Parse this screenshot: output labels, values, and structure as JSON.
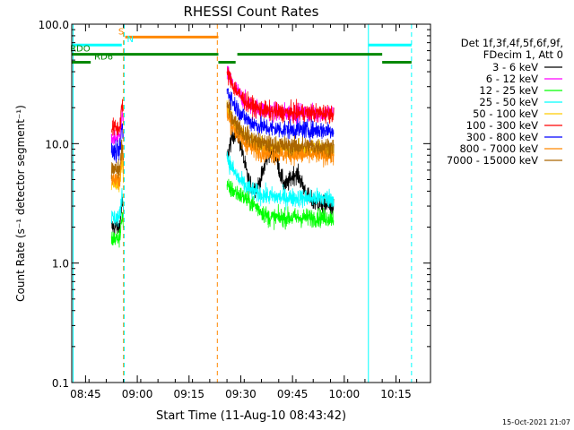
{
  "chart_data": {
    "type": "line",
    "title": "RHESSI Count Rates",
    "xlabel": "Start Time (11-Aug-10 08:43:42)",
    "ylabel": "Count Rate (s⁻¹ detector segment⁻¹)",
    "yscale": "log",
    "ylim": [
      0.1,
      100.0
    ],
    "xlim_minutes": [
      -4,
      100
    ],
    "x_ticks": [
      {
        "m": 0,
        "label": "08:45"
      },
      {
        "m": 15,
        "label": "09:00"
      },
      {
        "m": 30,
        "label": "09:15"
      },
      {
        "m": 45,
        "label": "09:30"
      },
      {
        "m": 60,
        "label": "09:45"
      },
      {
        "m": 75,
        "label": "10:00"
      },
      {
        "m": 90,
        "label": "10:15"
      }
    ],
    "y_ticks": [
      {
        "v": 0.1,
        "label": "0.1"
      },
      {
        "v": 1.0,
        "label": "1.0"
      },
      {
        "v": 10.0,
        "label": "10.0"
      },
      {
        "v": 100.0,
        "label": "100.0"
      }
    ],
    "legend_header": [
      "Det 1f,3f,4f,5f,6f,9f,",
      "FDecim 1, Att 0"
    ],
    "series": [
      {
        "name": "3 - 6 keV",
        "color": "#000000",
        "b1": 2.0,
        "b2": 4.5
      },
      {
        "name": "6 - 12 keV",
        "color": "#ff00ff",
        "b1": 11.0,
        "b2": 18.0
      },
      {
        "name": "12 - 25 keV",
        "color": "#00ff00",
        "b1": 1.6,
        "b2": 2.4
      },
      {
        "name": "25 - 50 keV",
        "color": "#00ffff",
        "b1": 2.4,
        "b2": 3.5
      },
      {
        "name": "50 - 100 keV",
        "color": "#ffcc00",
        "b1": 4.5,
        "b2": 9.0
      },
      {
        "name": "100 - 300 keV",
        "color": "#ff0000",
        "b1": 13.5,
        "b2": 18.0
      },
      {
        "name": "300 - 800 keV",
        "color": "#0000ff",
        "b1": 8.5,
        "b2": 13.0
      },
      {
        "name": "800 - 7000 keV",
        "color": "#ff8800",
        "b1": 5.0,
        "b2": 8.0
      },
      {
        "name": "7000 - 15000 keV",
        "color": "#aa6600",
        "b1": 6.0,
        "b2": 9.5
      }
    ],
    "segments": [
      {
        "start": 7.5,
        "end": 11.0
      },
      {
        "start": 41.0,
        "end": 72.0
      }
    ],
    "flags": [
      {
        "name": "S",
        "color": "#ff8800",
        "start": 11.5,
        "end": 38.5,
        "level": 78,
        "label_m": 9.5
      },
      {
        "name": "N",
        "color": "#00ffff",
        "start": -4.0,
        "end": 10.5,
        "level": 67,
        "label_m": 12.0
      },
      {
        "name": "N",
        "color": "#00ffff",
        "start": 82.0,
        "end": 94.5,
        "level": 67,
        "label_m": null
      },
      {
        "name": "RDO",
        "color": "#008800",
        "start": -4.0,
        "end": 38.5,
        "level": 56,
        "label_m": -4.5
      },
      {
        "name": "RDO",
        "color": "#008800",
        "start": 44.0,
        "end": 86.0,
        "level": 56,
        "label_m": null
      },
      {
        "name": "RD6",
        "color": "#008800",
        "start": -4.0,
        "end": 1.5,
        "level": 48,
        "label_m": 2.5
      },
      {
        "name": "RD6",
        "color": "#008800",
        "start": 38.5,
        "end": 43.5,
        "level": 48,
        "label_m": null
      },
      {
        "name": "RD6",
        "color": "#008800",
        "start": 86.0,
        "end": 94.5,
        "level": 48,
        "label_m": null
      }
    ],
    "vlines": [
      {
        "m": -3.6,
        "color": "#00ffff",
        "dash": false
      },
      {
        "m": 11.0,
        "color": "#ff8800",
        "dash": true
      },
      {
        "m": 11.2,
        "color": "#00ffff",
        "dash": true
      },
      {
        "m": 38.2,
        "color": "#ff8800",
        "dash": true
      },
      {
        "m": 82.0,
        "color": "#00ffff",
        "dash": false
      },
      {
        "m": 94.5,
        "color": "#00ffff",
        "dash": true
      }
    ]
  },
  "footer": {
    "timestamp": "15-Oct-2021 21:07"
  }
}
